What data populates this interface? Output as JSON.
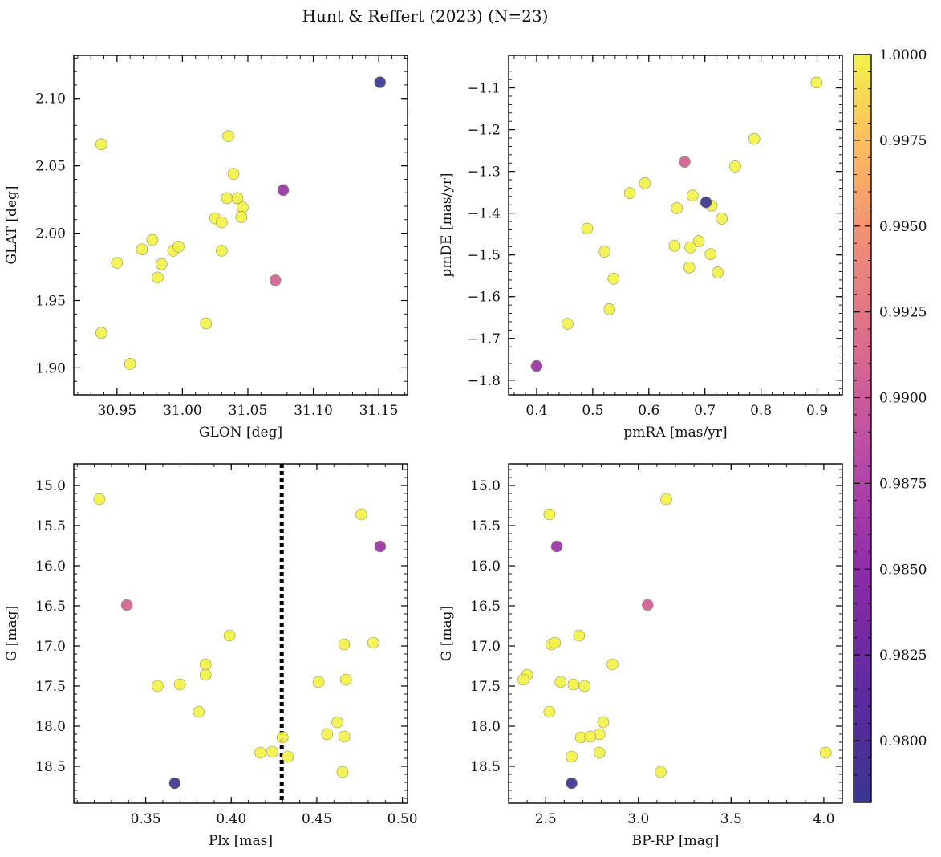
{
  "chart_data": {
    "title": "Hunt & Reffert (2023) (N=23)",
    "type": "scatter",
    "colorbar": {
      "min": 0.9782,
      "max": 1.0,
      "ticks": [
        0.98,
        0.9825,
        0.985,
        0.9875,
        0.99,
        0.9925,
        0.995,
        0.9975,
        1.0
      ],
      "tick_labels": [
        "0.9800",
        "0.9825",
        "0.9850",
        "0.9875",
        "0.9900",
        "0.9925",
        "0.9950",
        "0.9975",
        "1.0000"
      ],
      "colormap": "plasma"
    },
    "panels": [
      {
        "id": "glon-glat",
        "xlabel": "GLON [deg]",
        "ylabel": "GLAT [deg]",
        "xlim": [
          30.917,
          31.172
        ],
        "ylim": [
          1.88,
          2.132
        ],
        "yinvert": false,
        "xticks": [
          30.95,
          31.0,
          31.05,
          31.1,
          31.15
        ],
        "xtick_labels": [
          "30.95",
          "31.00",
          "31.05",
          "31.10",
          "31.15"
        ],
        "xminor": 0.01,
        "yticks": [
          1.9,
          1.95,
          2.0,
          2.05,
          2.1
        ],
        "ytick_labels": [
          "1.90",
          "1.95",
          "2.00",
          "2.05",
          "2.10"
        ],
        "yminor": 0.01,
        "points": [
          {
            "x": 30.938,
            "y": 2.066,
            "c": 1.0
          },
          {
            "x": 30.95,
            "y": 1.978,
            "c": 1.0
          },
          {
            "x": 30.938,
            "y": 1.926,
            "c": 1.0
          },
          {
            "x": 30.96,
            "y": 1.903,
            "c": 1.0
          },
          {
            "x": 30.969,
            "y": 1.988,
            "c": 1.0
          },
          {
            "x": 30.977,
            "y": 1.995,
            "c": 1.0
          },
          {
            "x": 30.981,
            "y": 1.967,
            "c": 1.0
          },
          {
            "x": 30.984,
            "y": 1.977,
            "c": 1.0
          },
          {
            "x": 30.993,
            "y": 1.987,
            "c": 1.0
          },
          {
            "x": 30.997,
            "y": 1.99,
            "c": 1.0
          },
          {
            "x": 31.018,
            "y": 1.933,
            "c": 1.0
          },
          {
            "x": 31.025,
            "y": 2.011,
            "c": 1.0
          },
          {
            "x": 31.03,
            "y": 2.008,
            "c": 1.0
          },
          {
            "x": 31.03,
            "y": 1.987,
            "c": 1.0
          },
          {
            "x": 31.034,
            "y": 2.026,
            "c": 1.0
          },
          {
            "x": 31.035,
            "y": 2.072,
            "c": 1.0
          },
          {
            "x": 31.039,
            "y": 2.044,
            "c": 1.0
          },
          {
            "x": 31.042,
            "y": 2.026,
            "c": 1.0
          },
          {
            "x": 31.046,
            "y": 2.019,
            "c": 1.0
          },
          {
            "x": 31.045,
            "y": 2.012,
            "c": 1.0
          },
          {
            "x": 31.071,
            "y": 1.965,
            "c": 0.9905
          },
          {
            "x": 31.077,
            "y": 2.032,
            "c": 0.9858
          },
          {
            "x": 31.151,
            "y": 2.112,
            "c": 0.9783
          }
        ]
      },
      {
        "id": "pmra-pmde",
        "xlabel": "pmRA [mas/yr]",
        "ylabel": "pmDE [mas/yr]",
        "xlim": [
          0.35,
          0.945
        ],
        "ylim": [
          -1.835,
          -1.022
        ],
        "yinvert": false,
        "xticks": [
          0.4,
          0.5,
          0.6,
          0.7,
          0.8,
          0.9
        ],
        "xtick_labels": [
          "0.4",
          "0.5",
          "0.6",
          "0.7",
          "0.8",
          "0.9"
        ],
        "xminor": 0.02,
        "yticks": [
          -1.8,
          -1.7,
          -1.6,
          -1.5,
          -1.4,
          -1.3,
          -1.2,
          -1.1
        ],
        "ytick_labels": [
          "−1.8",
          "−1.7",
          "−1.6",
          "−1.5",
          "−1.4",
          "−1.3",
          "−1.2",
          "−1.1"
        ],
        "yminor": 0.02,
        "points": [
          {
            "x": 0.899,
            "y": -1.087,
            "c": 1.0
          },
          {
            "x": 0.788,
            "y": -1.222,
            "c": 1.0
          },
          {
            "x": 0.754,
            "y": -1.288,
            "c": 1.0
          },
          {
            "x": 0.593,
            "y": -1.328,
            "c": 1.0
          },
          {
            "x": 0.566,
            "y": -1.352,
            "c": 1.0
          },
          {
            "x": 0.678,
            "y": -1.358,
            "c": 1.0
          },
          {
            "x": 0.712,
            "y": -1.382,
            "c": 1.0
          },
          {
            "x": 0.65,
            "y": -1.388,
            "c": 1.0
          },
          {
            "x": 0.73,
            "y": -1.413,
            "c": 1.0
          },
          {
            "x": 0.49,
            "y": -1.437,
            "c": 1.0
          },
          {
            "x": 0.689,
            "y": -1.467,
            "c": 1.0
          },
          {
            "x": 0.646,
            "y": -1.478,
            "c": 1.0
          },
          {
            "x": 0.674,
            "y": -1.482,
            "c": 1.0
          },
          {
            "x": 0.521,
            "y": -1.492,
            "c": 1.0
          },
          {
            "x": 0.71,
            "y": -1.498,
            "c": 1.0
          },
          {
            "x": 0.672,
            "y": -1.53,
            "c": 1.0
          },
          {
            "x": 0.723,
            "y": -1.542,
            "c": 1.0
          },
          {
            "x": 0.537,
            "y": -1.557,
            "c": 1.0
          },
          {
            "x": 0.53,
            "y": -1.63,
            "c": 1.0
          },
          {
            "x": 0.455,
            "y": -1.665,
            "c": 1.0
          },
          {
            "x": 0.664,
            "y": -1.277,
            "c": 0.9905
          },
          {
            "x": 0.702,
            "y": -1.374,
            "c": 0.9783
          },
          {
            "x": 0.4,
            "y": -1.766,
            "c": 0.9858
          }
        ]
      },
      {
        "id": "plx-g",
        "xlabel": "Plx [mas]",
        "ylabel": "G [mag]",
        "xlim": [
          0.308,
          0.503
        ],
        "ylim": [
          14.73,
          18.96
        ],
        "yinvert": true,
        "vline": 0.4295,
        "xticks": [
          0.35,
          0.4,
          0.45,
          0.5
        ],
        "xtick_labels": [
          "0.35",
          "0.40",
          "0.45",
          "0.50"
        ],
        "xminor": 0.01,
        "yticks": [
          15.0,
          15.5,
          16.0,
          16.5,
          17.0,
          17.5,
          18.0,
          18.5
        ],
        "ytick_labels": [
          "15.0",
          "15.5",
          "16.0",
          "16.5",
          "17.0",
          "17.5",
          "18.0",
          "18.5"
        ],
        "yminor": 0.1,
        "points": [
          {
            "x": 0.323,
            "y": 15.17,
            "c": 1.0
          },
          {
            "x": 0.476,
            "y": 15.36,
            "c": 1.0
          },
          {
            "x": 0.399,
            "y": 16.87,
            "c": 1.0
          },
          {
            "x": 0.483,
            "y": 16.96,
            "c": 1.0
          },
          {
            "x": 0.466,
            "y": 16.98,
            "c": 1.0
          },
          {
            "x": 0.385,
            "y": 17.23,
            "c": 1.0
          },
          {
            "x": 0.385,
            "y": 17.36,
            "c": 1.0
          },
          {
            "x": 0.467,
            "y": 17.42,
            "c": 1.0
          },
          {
            "x": 0.451,
            "y": 17.45,
            "c": 1.0
          },
          {
            "x": 0.37,
            "y": 17.48,
            "c": 1.0
          },
          {
            "x": 0.357,
            "y": 17.5,
            "c": 1.0
          },
          {
            "x": 0.381,
            "y": 17.82,
            "c": 1.0
          },
          {
            "x": 0.462,
            "y": 17.95,
            "c": 1.0
          },
          {
            "x": 0.456,
            "y": 18.1,
            "c": 1.0
          },
          {
            "x": 0.466,
            "y": 18.13,
            "c": 1.0
          },
          {
            "x": 0.43,
            "y": 18.14,
            "c": 1.0
          },
          {
            "x": 0.417,
            "y": 18.33,
            "c": 1.0
          },
          {
            "x": 0.424,
            "y": 18.32,
            "c": 1.0
          },
          {
            "x": 0.433,
            "y": 18.38,
            "c": 1.0
          },
          {
            "x": 0.465,
            "y": 18.57,
            "c": 1.0
          },
          {
            "x": 0.339,
            "y": 16.49,
            "c": 0.9905
          },
          {
            "x": 0.487,
            "y": 15.76,
            "c": 0.9858
          },
          {
            "x": 0.367,
            "y": 18.71,
            "c": 0.9783
          }
        ]
      },
      {
        "id": "bprp-g",
        "xlabel": "BP-RP [mag]",
        "ylabel": "G [mag]",
        "xlim": [
          2.3,
          4.1
        ],
        "ylim": [
          14.73,
          18.96
        ],
        "yinvert": true,
        "xticks": [
          2.5,
          3.0,
          3.5,
          4.0
        ],
        "xtick_labels": [
          "2.5",
          "3.0",
          "3.5",
          "4.0"
        ],
        "xminor": 0.1,
        "yticks": [
          15.0,
          15.5,
          16.0,
          16.5,
          17.0,
          17.5,
          18.0,
          18.5
        ],
        "ytick_labels": [
          "15.0",
          "15.5",
          "16.0",
          "16.5",
          "17.0",
          "17.5",
          "18.0",
          "18.5"
        ],
        "yminor": 0.1,
        "points": [
          {
            "x": 3.15,
            "y": 15.17,
            "c": 1.0
          },
          {
            "x": 2.52,
            "y": 15.36,
            "c": 1.0
          },
          {
            "x": 2.68,
            "y": 16.87,
            "c": 1.0
          },
          {
            "x": 2.53,
            "y": 16.98,
            "c": 1.0
          },
          {
            "x": 2.55,
            "y": 16.96,
            "c": 1.0
          },
          {
            "x": 2.86,
            "y": 17.23,
            "c": 1.0
          },
          {
            "x": 2.4,
            "y": 17.36,
            "c": 1.0
          },
          {
            "x": 2.38,
            "y": 17.42,
            "c": 1.0
          },
          {
            "x": 2.58,
            "y": 17.45,
            "c": 1.0
          },
          {
            "x": 2.65,
            "y": 17.48,
            "c": 1.0
          },
          {
            "x": 2.71,
            "y": 17.5,
            "c": 1.0
          },
          {
            "x": 2.52,
            "y": 17.82,
            "c": 1.0
          },
          {
            "x": 2.81,
            "y": 17.95,
            "c": 1.0
          },
          {
            "x": 2.79,
            "y": 18.1,
            "c": 1.0
          },
          {
            "x": 2.69,
            "y": 18.14,
            "c": 1.0
          },
          {
            "x": 2.74,
            "y": 18.13,
            "c": 1.0
          },
          {
            "x": 2.79,
            "y": 18.33,
            "c": 1.0
          },
          {
            "x": 2.64,
            "y": 18.38,
            "c": 1.0
          },
          {
            "x": 4.01,
            "y": 18.33,
            "c": 1.0
          },
          {
            "x": 3.12,
            "y": 18.57,
            "c": 1.0
          },
          {
            "x": 3.05,
            "y": 16.49,
            "c": 0.9905
          },
          {
            "x": 2.56,
            "y": 15.76,
            "c": 0.9858
          },
          {
            "x": 2.64,
            "y": 18.71,
            "c": 0.9783
          }
        ]
      }
    ]
  }
}
